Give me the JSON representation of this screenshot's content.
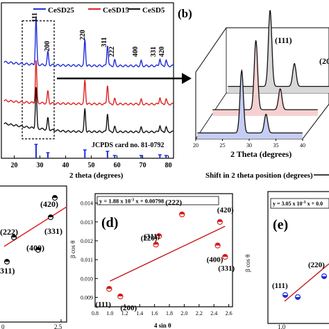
{
  "panel_a": {
    "legend": [
      {
        "name": "CeSD25",
        "color": "#1f2fd6"
      },
      {
        "name": "CeSD15",
        "color": "#e02020"
      },
      {
        "name": "CeSD5",
        "color": "#111111"
      }
    ],
    "xlabel": "2 theta (degrees)",
    "xticks": [
      "20",
      "30",
      "40",
      "50",
      "60",
      "70",
      "80"
    ],
    "jcpds": "JCPDS card no. 81-0792",
    "peak_labels": [
      "111",
      "200",
      "220",
      "311",
      "222",
      "400",
      "331",
      "420"
    ]
  },
  "panel_b": {
    "label": "(b)",
    "xlabel": "2 Theta (degrees)",
    "xticks": [
      "20",
      "25",
      "30",
      "35",
      "40"
    ],
    "peak_labels": [
      "(111)",
      "(20"
    ],
    "caption": "Shift in 2 theta position (degrees)"
  },
  "panel_c": {
    "points": [
      "(420)",
      "(222)",
      "(400)",
      "(331)",
      "311)"
    ],
    "xticks": [
      "0",
      "2.5"
    ]
  },
  "panel_d": {
    "label": "(d)",
    "equation": "y = 1.88 x 10",
    "equation_exp": "-3",
    "equation_tail": " x + 0.00798",
    "ylabel": "β cos θ",
    "xlabel": "4 sin θ",
    "yticks": [
      "0.009",
      "0.010",
      "0.011",
      "0.012",
      "0.013",
      "0.014"
    ],
    "xticks": [
      "0.8",
      "1.0",
      "1.2",
      "1.4",
      "1.6",
      "1.8",
      "2.0",
      "2.2",
      "2.4",
      "2.6"
    ],
    "point_labels": [
      "(111)",
      "(200)",
      "(220)",
      "(311)",
      "(222)",
      "(420)",
      "(400)",
      "(331)"
    ]
  },
  "panel_e": {
    "label": "(e)",
    "equation": "y = 3.05 x 10",
    "equation_exp": "-3",
    "equation_tail": " x + 0.0",
    "ylabel": "β cos θ",
    "point_labels": [
      "(111)",
      "(220)"
    ],
    "xticks": [
      "1.0"
    ]
  },
  "chart_data": [
    {
      "type": "line",
      "title": "",
      "xlabel": "2 theta (degrees)",
      "ylabel": "",
      "xlim": [
        15,
        82
      ],
      "series": [
        {
          "name": "CeSD25",
          "peaks_2theta": [
            28.5,
            33.1,
            47.5,
            56.3,
            59.1,
            69.4,
            76.7,
            79.1
          ]
        },
        {
          "name": "CeSD15",
          "peaks_2theta": [
            28.5,
            33.1,
            47.5,
            56.3,
            59.1,
            69.4,
            76.7,
            79.1
          ]
        },
        {
          "name": "CeSD5",
          "peaks_2theta": [
            28.5,
            33.1,
            47.5,
            56.3,
            59.1,
            69.4,
            76.7,
            79.1
          ]
        }
      ],
      "reference": {
        "name": "JCPDS card no. 81-0792",
        "x": [
          28.5,
          33.1,
          47.5,
          56.3,
          59.1,
          69.4,
          76.7,
          79.1
        ]
      }
    },
    {
      "type": "scatter",
      "title": "",
      "xlabel": "4 sin θ",
      "ylabel": "β cos θ",
      "xlim": [
        0.8,
        2.65
      ],
      "ylim": [
        0.0085,
        0.0145
      ],
      "series": [
        {
          "name": "data",
          "x": [
            0.99,
            1.14,
            1.62,
            1.66,
            1.97,
            2.48,
            2.45,
            2.55
          ],
          "y": [
            0.00945,
            0.00905,
            0.0118,
            0.01225,
            0.0134,
            0.013,
            0.01175,
            0.01115
          ],
          "labels": [
            "(111)",
            "(200)",
            "(220)",
            "(311)",
            "(222)",
            "(420)",
            "(400)",
            "(331)"
          ]
        },
        {
          "name": "fit",
          "x": [
            1.0,
            2.55
          ],
          "y": [
            0.00986,
            0.01277
          ]
        }
      ]
    }
  ]
}
